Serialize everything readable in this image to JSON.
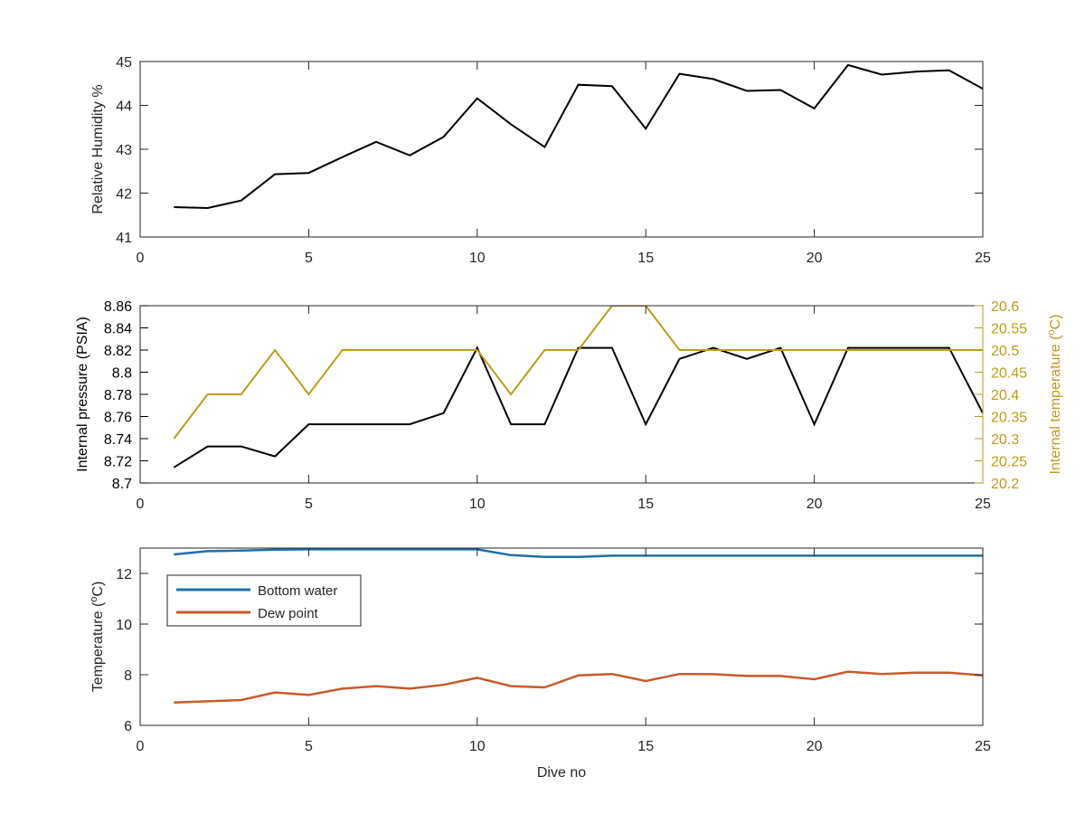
{
  "chart_data": [
    {
      "type": "line",
      "xlabel": "",
      "ylabel": "Relative Humidity %",
      "xlim": [
        0,
        25
      ],
      "ylim": [
        41,
        45
      ],
      "xticks": [
        0,
        5,
        10,
        15,
        20,
        25
      ],
      "yticks": [
        41,
        42,
        43,
        44,
        45
      ],
      "ytick_labels": [
        "41",
        "42",
        "43",
        "44",
        "45"
      ],
      "grid": false,
      "series": [
        {
          "color": "#000000",
          "x": [
            1,
            2,
            3,
            4,
            5,
            6,
            7,
            8,
            9,
            10,
            11,
            12,
            13,
            14,
            15,
            16,
            17,
            18,
            19,
            20,
            21,
            22,
            23,
            24,
            25
          ],
          "y": [
            41.68,
            41.66,
            41.83,
            42.43,
            42.46,
            42.82,
            43.17,
            42.86,
            43.28,
            44.16,
            43.57,
            43.05,
            44.47,
            44.44,
            43.47,
            44.72,
            44.6,
            44.33,
            44.35,
            43.93,
            44.92,
            44.7,
            44.77,
            44.8,
            44.38
          ]
        }
      ]
    },
    {
      "type": "line",
      "xlabel": "",
      "ylabel": "Internal pressure (PSIA)",
      "ylabel_right": "Internal temperature (",
      "ylabel_right_sup": "o",
      "ylabel_right_tail": "C)",
      "xlim": [
        0,
        25
      ],
      "ylim": [
        8.7,
        8.86
      ],
      "ylim_right": [
        20.2,
        20.6
      ],
      "xticks": [
        0,
        5,
        10,
        15,
        20,
        25
      ],
      "yticks": [
        8.7,
        8.72,
        8.74,
        8.76,
        8.78,
        8.8,
        8.82,
        8.84,
        8.86
      ],
      "ytick_labels": [
        "8.7",
        "8.72",
        "8.74",
        "8.76",
        "8.78",
        "8.8",
        "8.82",
        "8.84",
        "8.86"
      ],
      "yticks_right": [
        20.2,
        20.25,
        20.3,
        20.35,
        20.4,
        20.45,
        20.5,
        20.55,
        20.6
      ],
      "ytick_labels_right": [
        "20.2",
        "20.25",
        "20.3",
        "20.35",
        "20.4",
        "20.45",
        "20.5",
        "20.55",
        "20.6"
      ],
      "right_axis_color": "#c09a1a",
      "grid": false,
      "series": [
        {
          "axis": "left",
          "color": "#000000",
          "x": [
            1,
            2,
            3,
            4,
            5,
            6,
            7,
            8,
            9,
            10,
            11,
            12,
            13,
            14,
            15,
            16,
            17,
            18,
            19,
            20,
            21,
            22,
            23,
            24,
            25
          ],
          "y": [
            8.714,
            8.733,
            8.733,
            8.724,
            8.753,
            8.753,
            8.753,
            8.753,
            8.763,
            8.822,
            8.753,
            8.753,
            8.822,
            8.822,
            8.753,
            8.812,
            8.822,
            8.812,
            8.822,
            8.753,
            8.822,
            8.822,
            8.822,
            8.822,
            8.763
          ]
        },
        {
          "axis": "right",
          "color": "#c09a1a",
          "x": [
            1,
            2,
            3,
            4,
            5,
            6,
            7,
            8,
            9,
            10,
            11,
            12,
            13,
            14,
            15,
            16,
            17,
            18,
            19,
            20,
            21,
            22,
            23,
            24,
            25
          ],
          "y": [
            20.3,
            20.4,
            20.4,
            20.5,
            20.4,
            20.5,
            20.5,
            20.5,
            20.5,
            20.5,
            20.4,
            20.5,
            20.5,
            20.6,
            20.6,
            20.5,
            20.5,
            20.5,
            20.5,
            20.5,
            20.5,
            20.5,
            20.5,
            20.5,
            20.5
          ]
        }
      ]
    },
    {
      "type": "line",
      "xlabel": "Dive no",
      "ylabel": "Temperature (",
      "ylabel_sup": "o",
      "ylabel_tail": "C)",
      "xlim": [
        0,
        25
      ],
      "ylim": [
        6,
        13
      ],
      "xticks": [
        0,
        5,
        10,
        15,
        20,
        25
      ],
      "yticks": [
        6,
        8,
        10,
        12
      ],
      "ytick_labels": [
        "6",
        "8",
        "10",
        "12"
      ],
      "grid": false,
      "legend_position": "top-left",
      "series": [
        {
          "name": "Bottom water",
          "color": "#1f6fa8",
          "x": [
            1,
            2,
            3,
            4,
            5,
            6,
            7,
            8,
            9,
            10,
            11,
            12,
            13,
            14,
            15,
            16,
            17,
            18,
            19,
            20,
            21,
            22,
            23,
            24,
            25
          ],
          "y": [
            12.75,
            12.88,
            12.9,
            12.94,
            12.95,
            12.95,
            12.95,
            12.95,
            12.95,
            12.95,
            12.72,
            12.65,
            12.65,
            12.7,
            12.7,
            12.7,
            12.7,
            12.7,
            12.7,
            12.7,
            12.7,
            12.7,
            12.7,
            12.7,
            12.7
          ]
        },
        {
          "name": "Dew point",
          "color": "#c85a2a",
          "x": [
            1,
            2,
            3,
            4,
            5,
            6,
            7,
            8,
            9,
            10,
            11,
            12,
            13,
            14,
            15,
            16,
            17,
            18,
            19,
            20,
            21,
            22,
            23,
            24,
            25
          ],
          "y": [
            6.9,
            6.95,
            7.0,
            7.3,
            7.2,
            7.45,
            7.55,
            7.45,
            7.6,
            7.88,
            7.55,
            7.5,
            7.97,
            8.03,
            7.75,
            8.03,
            8.02,
            7.95,
            7.95,
            7.82,
            8.12,
            8.03,
            8.08,
            8.08,
            7.97
          ]
        }
      ]
    }
  ]
}
